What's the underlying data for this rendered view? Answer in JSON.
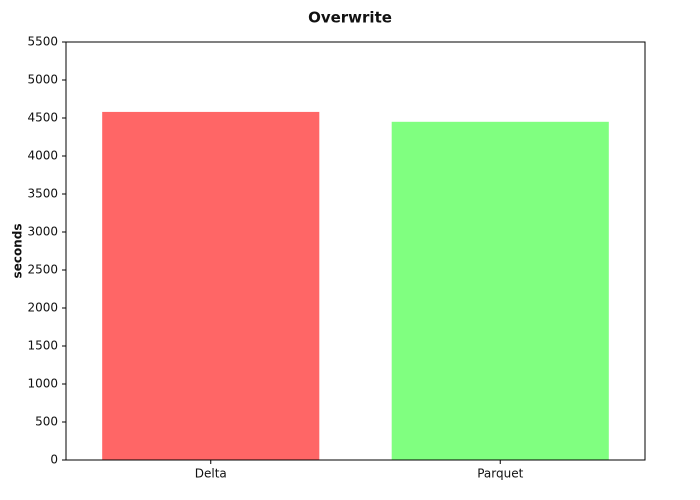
{
  "chart_data": {
    "type": "bar",
    "title": "Overwrite",
    "y_label": "seconds",
    "categories": [
      "Delta",
      "Parquet"
    ],
    "values": [
      4580,
      4450
    ],
    "colors": [
      "#ff6666",
      "#80ff80"
    ],
    "ylim": [
      0,
      5500
    ],
    "yticks": [
      0,
      500,
      1000,
      1500,
      2000,
      2500,
      3000,
      3500,
      4000,
      4500,
      5000,
      5500
    ],
    "grid": false
  }
}
